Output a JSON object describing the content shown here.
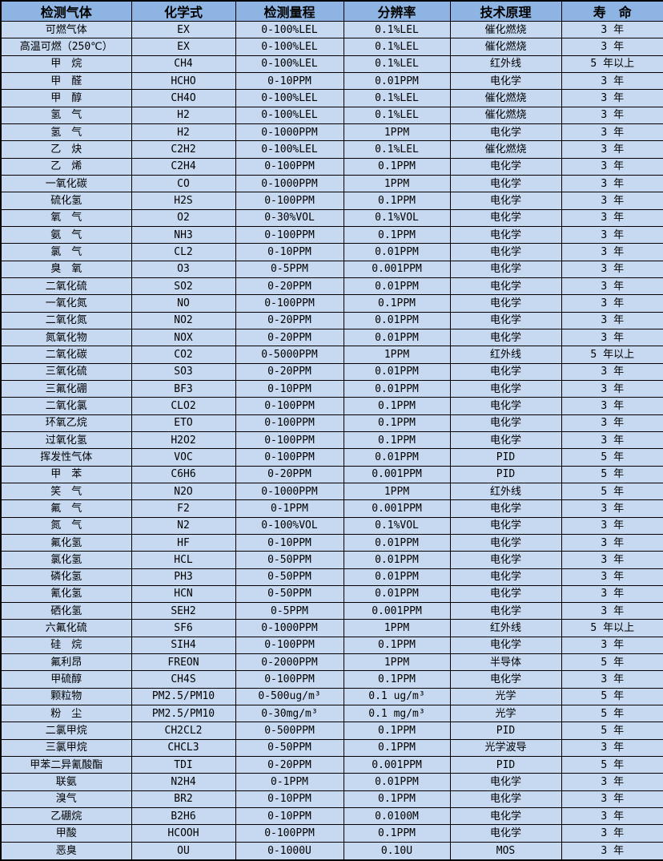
{
  "table": {
    "colors": {
      "header_bg": "#8db4e2",
      "row_bg": "#c6d9f1",
      "border": "#000000",
      "text": "#000000"
    },
    "columns": [
      "检测气体",
      "化学式",
      "检测量程",
      "分辨率",
      "技术原理",
      "寿　命"
    ],
    "rows": [
      [
        "可燃气体",
        "EX",
        "0-100%LEL",
        "0.1%LEL",
        "催化燃烧",
        "3 年"
      ],
      [
        "高温可燃（250℃）",
        "EX",
        "0-100%LEL",
        "0.1%LEL",
        "催化燃烧",
        "3 年"
      ],
      [
        "甲　烷",
        "CH4",
        "0-100%LEL",
        "0.1%LEL",
        "红外线",
        "5 年以上"
      ],
      [
        "甲　醛",
        "HCHO",
        "0-10PPM",
        "0.01PPM",
        "电化学",
        "3 年"
      ],
      [
        "甲　醇",
        "CH4O",
        "0-100%LEL",
        "0.1%LEL",
        "催化燃烧",
        "3 年"
      ],
      [
        "氢　气",
        "H2",
        "0-100%LEL",
        "0.1%LEL",
        "催化燃烧",
        "3 年"
      ],
      [
        "氢　气",
        "H2",
        "0-1000PPM",
        "1PPM",
        "电化学",
        "3 年"
      ],
      [
        "乙　炔",
        "C2H2",
        "0-100%LEL",
        "0.1%LEL",
        "催化燃烧",
        "3 年"
      ],
      [
        "乙　烯",
        "C2H4",
        "0-100PPM",
        "0.1PPM",
        "电化学",
        "3 年"
      ],
      [
        "一氧化碳",
        "CO",
        "0-1000PPM",
        "1PPM",
        "电化学",
        "3 年"
      ],
      [
        "硫化氢",
        "H2S",
        "0-100PPM",
        "0.1PPM",
        "电化学",
        "3 年"
      ],
      [
        "氧　气",
        "O2",
        "0-30%VOL",
        "0.1%VOL",
        "电化学",
        "3 年"
      ],
      [
        "氨　气",
        "NH3",
        "0-100PPM",
        "0.1PPM",
        "电化学",
        "3 年"
      ],
      [
        "氯　气",
        "CL2",
        "0-10PPM",
        "0.01PPM",
        "电化学",
        "3 年"
      ],
      [
        "臭　氧",
        "O3",
        "0-5PPM",
        "0.001PPM",
        "电化学",
        "3 年"
      ],
      [
        "二氧化硫",
        "SO2",
        "0-20PPM",
        "0.01PPM",
        "电化学",
        "3 年"
      ],
      [
        "一氧化氮",
        "NO",
        "0-100PPM",
        "0.1PPM",
        "电化学",
        "3 年"
      ],
      [
        "二氧化氮",
        "NO2",
        "0-20PPM",
        "0.01PPM",
        "电化学",
        "3 年"
      ],
      [
        "氮氧化物",
        "NOX",
        "0-20PPM",
        "0.01PPM",
        "电化学",
        "3 年"
      ],
      [
        "二氧化碳",
        "CO2",
        "0-5000PPM",
        "1PPM",
        "红外线",
        "5 年以上"
      ],
      [
        "三氧化硫",
        "SO3",
        "0-20PPM",
        "0.01PPM",
        "电化学",
        "3 年"
      ],
      [
        "三氟化硼",
        "BF3",
        "0-10PPM",
        "0.01PPM",
        "电化学",
        "3 年"
      ],
      [
        "二氧化氯",
        "CLO2",
        "0-100PPM",
        "0.1PPM",
        "电化学",
        "3 年"
      ],
      [
        "环氧乙烷",
        "ETO",
        "0-100PPM",
        "0.1PPM",
        "电化学",
        "3 年"
      ],
      [
        "过氧化氢",
        "H2O2",
        "0-100PPM",
        "0.1PPM",
        "电化学",
        "3 年"
      ],
      [
        "挥发性气体",
        "VOC",
        "0-100PPM",
        "0.01PPM",
        "PID",
        "5 年"
      ],
      [
        "甲　苯",
        "C6H6",
        "0-20PPM",
        "0.001PPM",
        "PID",
        "5 年"
      ],
      [
        "笑　气",
        "N2O",
        "0-1000PPM",
        "1PPM",
        "红外线",
        "5 年"
      ],
      [
        "氟　气",
        "F2",
        "0-1PPM",
        "0.001PPM",
        "电化学",
        "3 年"
      ],
      [
        "氮　气",
        "N2",
        "0-100%VOL",
        "0.1%VOL",
        "电化学",
        "3 年"
      ],
      [
        "氟化氢",
        "HF",
        "0-10PPM",
        "0.01PPM",
        "电化学",
        "3 年"
      ],
      [
        "氯化氢",
        "HCL",
        "0-50PPM",
        "0.01PPM",
        "电化学",
        "3 年"
      ],
      [
        "磷化氢",
        "PH3",
        "0-50PPM",
        "0.01PPM",
        "电化学",
        "3 年"
      ],
      [
        "氰化氢",
        "HCN",
        "0-50PPM",
        "0.01PPM",
        "电化学",
        "3 年"
      ],
      [
        "硒化氢",
        "SEH2",
        "0-5PPM",
        "0.001PPM",
        "电化学",
        "3 年"
      ],
      [
        "六氟化硫",
        "SF6",
        "0-1000PPM",
        "1PPM",
        "红外线",
        "5 年以上"
      ],
      [
        "硅　烷",
        "SIH4",
        "0-100PPM",
        "0.1PPM",
        "电化学",
        "3 年"
      ],
      [
        "氟利昂",
        "FREON",
        "0-2000PPM",
        "1PPM",
        "半导体",
        "5 年"
      ],
      [
        "甲硫醇",
        "CH4S",
        "0-100PPM",
        "0.1PPM",
        "电化学",
        "3 年"
      ],
      [
        "颗粒物",
        "PM2.5/PM10",
        "0-500ug/m³",
        "0.1 ug/m³",
        "光学",
        "5 年"
      ],
      [
        "粉　尘",
        "PM2.5/PM10",
        "0-30mg/m³",
        "0.1 mg/m³",
        "光学",
        "5 年"
      ],
      [
        "二氯甲烷",
        "CH2CL2",
        "0-500PPM",
        "0.1PPM",
        "PID",
        "5 年"
      ],
      [
        "三氯甲烷",
        "CHCL3",
        "0-50PPM",
        "0.1PPM",
        "光学波导",
        "3 年"
      ],
      [
        "甲苯二异氰酸酯",
        "TDI",
        "0-20PPM",
        "0.001PPM",
        "PID",
        "5 年"
      ],
      [
        "联氨",
        "N2H4",
        "0-1PPM",
        "0.01PPM",
        "电化学",
        "3 年"
      ],
      [
        "溴气",
        "BR2",
        "0-10PPM",
        "0.1PPM",
        "电化学",
        "3 年"
      ],
      [
        "乙硼烷",
        "B2H6",
        "0-10PPM",
        "0.0100M",
        "电化学",
        "3 年"
      ],
      [
        "甲酸",
        "HCOOH",
        "0-100PPM",
        "0.1PPM",
        "电化学",
        "3 年"
      ],
      [
        "恶臭",
        "OU",
        "0-1000U",
        "0.10U",
        "MOS",
        "3 年"
      ]
    ]
  }
}
